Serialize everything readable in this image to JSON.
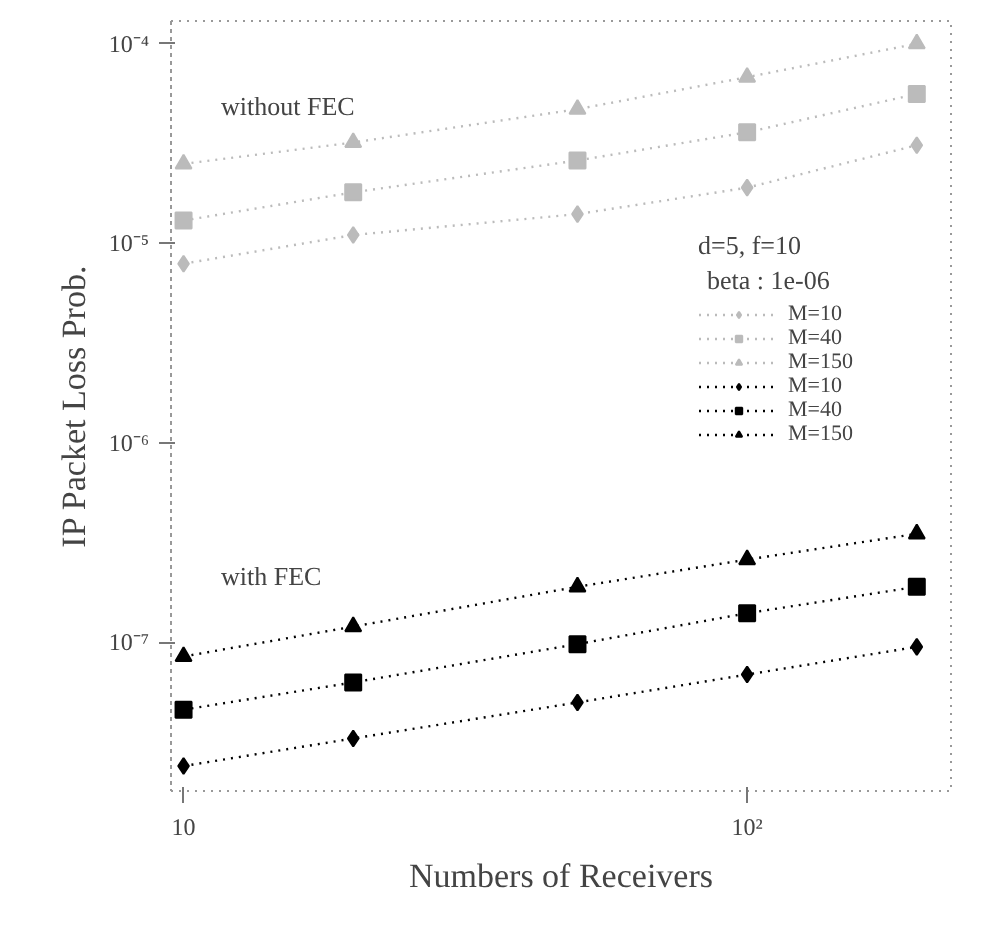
{
  "chart_data": {
    "type": "line",
    "xlabel": "Numbers of Receivers",
    "ylabel": "IP Packet Loss Prob.",
    "log": "xy",
    "legend": "right",
    "line_style": "dotted",
    "grid": false,
    "x": [
      10,
      20,
      50,
      100,
      200
    ],
    "xlim": [
      9.5,
      230
    ],
    "ylim": [
      1.8e-08,
      0.00013
    ],
    "xticks": [
      {
        "value": 10,
        "label": "10"
      },
      {
        "value": 100,
        "label": "10²"
      }
    ],
    "yticks": [
      {
        "value": 0.0001,
        "label": "10⁻⁴"
      },
      {
        "value": 1e-05,
        "label": "10⁻⁵"
      },
      {
        "value": 1e-06,
        "label": "10⁻⁶"
      },
      {
        "value": 1e-07,
        "label": "10⁻⁷"
      }
    ],
    "legend_title": "d=5, f=10",
    "annotations": [
      "beta : 1e-06",
      "without FEC",
      "with FEC"
    ],
    "series": [
      {
        "name": "M=10",
        "color": "#bbbbbb",
        "marker": "diamond",
        "values": [
          7.9e-06,
          1.1e-05,
          1.4e-05,
          1.9e-05,
          3.1e-05
        ]
      },
      {
        "name": "M=40",
        "color": "#bbbbbb",
        "marker": "square",
        "values": [
          1.3e-05,
          1.8e-05,
          2.6e-05,
          3.6e-05,
          5.6e-05
        ]
      },
      {
        "name": "M=150",
        "color": "#bbbbbb",
        "marker": "triangle",
        "values": [
          2.5e-05,
          3.2e-05,
          4.7e-05,
          6.8e-05,
          0.0001
        ]
      },
      {
        "name": "M=10",
        "color": "#000000",
        "marker": "diamond",
        "values": [
          2.4e-08,
          3.3e-08,
          5e-08,
          6.9e-08,
          9.5e-08
        ]
      },
      {
        "name": "M=40",
        "color": "#000000",
        "marker": "square",
        "values": [
          4.6e-08,
          6.3e-08,
          9.8e-08,
          1.4e-07,
          1.9e-07
        ]
      },
      {
        "name": "M=150",
        "color": "#000000",
        "marker": "triangle",
        "values": [
          8.5e-08,
          1.2e-07,
          1.9e-07,
          2.6e-07,
          3.5e-07
        ]
      }
    ]
  }
}
